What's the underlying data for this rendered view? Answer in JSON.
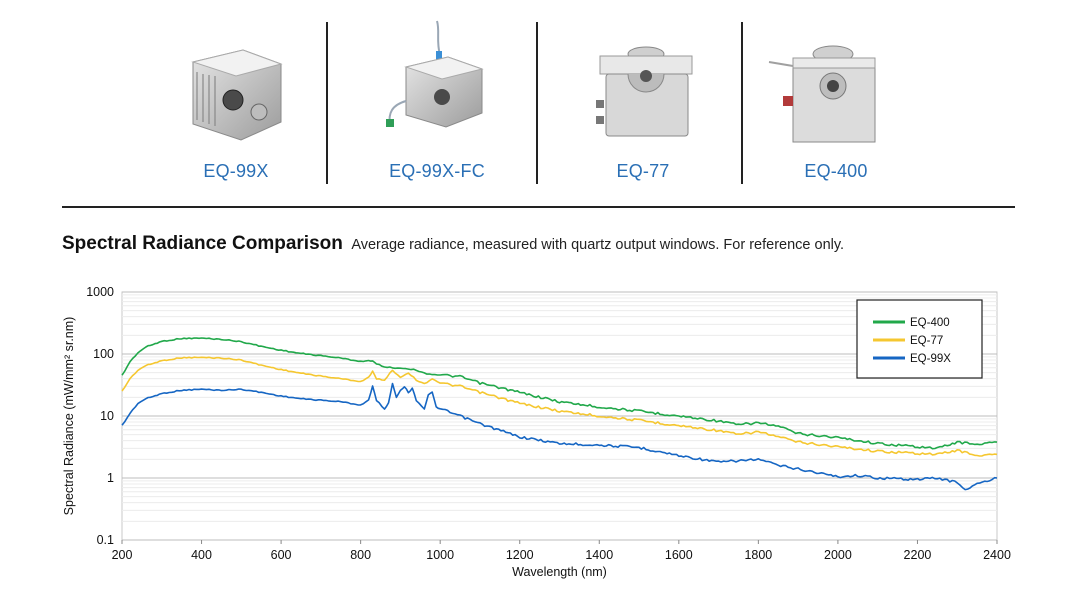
{
  "products": [
    {
      "name": "EQ-99X",
      "icon": "eq-99x-photo"
    },
    {
      "name": "EQ-99X-FC",
      "icon": "eq-99x-fc-photo"
    },
    {
      "name": "EQ-77",
      "icon": "eq-77-photo"
    },
    {
      "name": "EQ-400",
      "icon": "eq-400-photo"
    }
  ],
  "heading": {
    "title": "Spectral Radiance Comparison",
    "subtitle": "Average radiance, measured with quartz output windows. For reference only."
  },
  "chart_data": {
    "type": "line",
    "title": "Spectral Radiance Comparison",
    "xlabel": "Wavelength (nm)",
    "ylabel": "Spectral Radiance (mW/mm² sr.nm)",
    "x_ticks": [
      200,
      400,
      600,
      800,
      1000,
      1200,
      1400,
      1600,
      1800,
      2000,
      2200,
      2400
    ],
    "y_ticks": [
      0.1,
      1,
      10,
      100,
      1000
    ],
    "y_tick_labels": [
      "0.1",
      "1",
      "10",
      "100",
      "1000"
    ],
    "xlim": [
      200,
      2400
    ],
    "ylim": [
      0.1,
      1000
    ],
    "y_scale": "log",
    "grid": true,
    "legend_position": "top-right",
    "series": [
      {
        "name": "EQ-400",
        "color": "#21a84a",
        "x": [
          200,
          220,
          240,
          260,
          300,
          350,
          400,
          450,
          500,
          550,
          600,
          650,
          700,
          750,
          800,
          820,
          830,
          840,
          860,
          880,
          900,
          920,
          940,
          960,
          980,
          1000,
          1050,
          1100,
          1200,
          1300,
          1400,
          1500,
          1600,
          1700,
          1750,
          1800,
          1850,
          1900,
          2000,
          2100,
          2200,
          2250,
          2300,
          2350,
          2400
        ],
        "y": [
          45,
          75,
          105,
          130,
          160,
          178,
          180,
          172,
          158,
          133,
          115,
          102,
          94,
          86,
          76,
          78,
          76,
          70,
          62,
          60,
          59,
          58,
          55,
          49,
          47,
          46,
          43,
          34,
          24,
          17,
          14,
          12,
          10,
          8.3,
          7.2,
          7.8,
          6.8,
          5.2,
          4.5,
          3.6,
          3.2,
          3.0,
          3.8,
          3.5,
          3.8
        ]
      },
      {
        "name": "EQ-77",
        "color": "#f5c730",
        "x": [
          200,
          220,
          240,
          260,
          300,
          350,
          400,
          450,
          500,
          550,
          600,
          650,
          700,
          750,
          800,
          820,
          830,
          840,
          860,
          880,
          900,
          920,
          940,
          960,
          980,
          1000,
          1050,
          1100,
          1200,
          1300,
          1400,
          1500,
          1600,
          1700,
          1750,
          1800,
          1850,
          1900,
          2000,
          2100,
          2200,
          2250,
          2300,
          2350,
          2400
        ],
        "y": [
          25,
          40,
          55,
          65,
          78,
          87,
          88,
          86,
          80,
          66,
          56,
          49,
          44,
          40,
          36,
          42,
          52,
          40,
          38,
          55,
          42,
          50,
          38,
          33,
          40,
          34,
          30,
          24,
          16,
          12,
          10,
          8.5,
          7.0,
          5.8,
          5.0,
          5.6,
          4.6,
          3.8,
          3.2,
          2.7,
          2.5,
          2.4,
          2.8,
          2.3,
          2.4
        ]
      },
      {
        "name": "EQ-99X",
        "color": "#1666c3",
        "x": [
          200,
          220,
          240,
          260,
          300,
          350,
          400,
          450,
          500,
          550,
          600,
          650,
          700,
          750,
          800,
          820,
          830,
          840,
          860,
          870,
          880,
          890,
          900,
          910,
          920,
          930,
          940,
          960,
          970,
          980,
          990,
          1000,
          1050,
          1100,
          1200,
          1300,
          1400,
          1500,
          1600,
          1700,
          1750,
          1800,
          1850,
          1900,
          2000,
          2050,
          2100,
          2200,
          2250,
          2300,
          2320,
          2350,
          2400
        ],
        "y": [
          7,
          11,
          16,
          19,
          23,
          26,
          27,
          26,
          27,
          24,
          21,
          19,
          18,
          17,
          15,
          18,
          30,
          18,
          13,
          16,
          34,
          20,
          26,
          30,
          24,
          28,
          18,
          13,
          22,
          24,
          14,
          13,
          10,
          7.5,
          4.6,
          3.6,
          3.4,
          3.1,
          2.3,
          1.8,
          1.9,
          2.0,
          1.6,
          1.4,
          1.05,
          1.1,
          1.0,
          0.95,
          1.0,
          0.85,
          0.65,
          0.8,
          1.0
        ]
      }
    ]
  }
}
